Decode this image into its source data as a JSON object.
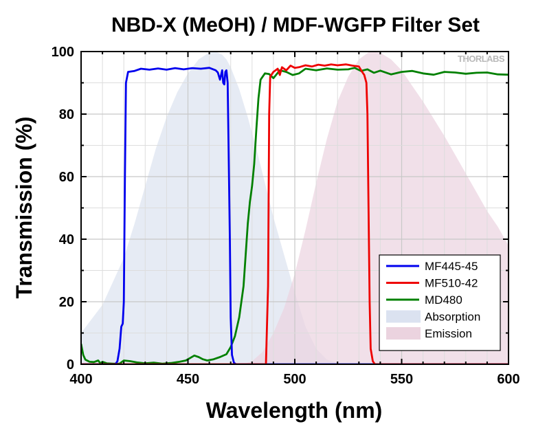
{
  "chart_data": {
    "type": "line",
    "title": "NBD-X (MeOH) / MDF-WGFP Filter Set",
    "xlabel": "Wavelength (nm)",
    "ylabel": "Transmission (%)",
    "xlim": [
      400,
      600
    ],
    "ylim": [
      0,
      100
    ],
    "x_ticks": [
      400,
      450,
      500,
      550,
      600
    ],
    "y_ticks": [
      0,
      20,
      40,
      60,
      80,
      100
    ],
    "grid": true,
    "legend_position": "bottom-right",
    "watermark": "THORLABS",
    "series": [
      {
        "name": "MF445-45",
        "kind": "line",
        "color": "#0000ee",
        "points": [
          [
            400,
            0
          ],
          [
            416,
            0
          ],
          [
            417,
            1
          ],
          [
            418,
            5
          ],
          [
            418.8,
            12
          ],
          [
            419.5,
            13
          ],
          [
            420,
            20
          ],
          [
            420.5,
            60
          ],
          [
            421,
            90
          ],
          [
            422,
            93.5
          ],
          [
            425,
            93.8
          ],
          [
            428,
            94.5
          ],
          [
            432,
            94.2
          ],
          [
            436,
            94.6
          ],
          [
            440,
            94.2
          ],
          [
            444,
            94.7
          ],
          [
            448,
            94.3
          ],
          [
            452,
            94.7
          ],
          [
            456,
            94.5
          ],
          [
            460,
            94.8
          ],
          [
            463,
            94.0
          ],
          [
            464,
            93.3
          ],
          [
            465,
            91.0
          ],
          [
            466,
            94.0
          ],
          [
            466.5,
            90.0
          ],
          [
            467,
            89.5
          ],
          [
            467.5,
            93.5
          ],
          [
            468,
            94.0
          ],
          [
            468.6,
            90.0
          ],
          [
            469,
            70.0
          ],
          [
            469.6,
            40.0
          ],
          [
            470,
            15.0
          ],
          [
            470.6,
            3.0
          ],
          [
            471.5,
            0.5
          ],
          [
            472.5,
            0
          ],
          [
            600,
            0
          ]
        ]
      },
      {
        "name": "MF510-42",
        "kind": "line",
        "color": "#ee0000",
        "points": [
          [
            400,
            0
          ],
          [
            486.5,
            0
          ],
          [
            487.5,
            25
          ],
          [
            488,
            80
          ],
          [
            488.5,
            92
          ],
          [
            490,
            93.5
          ],
          [
            492,
            94.5
          ],
          [
            493,
            92.5
          ],
          [
            494,
            95
          ],
          [
            496,
            94.0
          ],
          [
            498,
            95.5
          ],
          [
            500,
            94.8
          ],
          [
            502,
            95.0
          ],
          [
            505,
            95.6
          ],
          [
            508,
            95.2
          ],
          [
            511,
            95.8
          ],
          [
            514,
            95.5
          ],
          [
            517,
            95.9
          ],
          [
            520,
            95.6
          ],
          [
            524,
            95.9
          ],
          [
            527,
            95.5
          ],
          [
            530,
            95.2
          ],
          [
            531.5,
            93.5
          ],
          [
            532.5,
            92.5
          ],
          [
            533.5,
            90
          ],
          [
            534,
            80
          ],
          [
            534.5,
            50
          ],
          [
            535,
            20
          ],
          [
            535.5,
            5
          ],
          [
            536.5,
            1
          ],
          [
            537.5,
            0
          ],
          [
            600,
            0
          ]
        ]
      },
      {
        "name": "MD480",
        "kind": "line",
        "color": "#008000",
        "points": [
          [
            400,
            6.5
          ],
          [
            401,
            3
          ],
          [
            402,
            1.5
          ],
          [
            404,
            0.8
          ],
          [
            406,
            0.7
          ],
          [
            408,
            1.2
          ],
          [
            409,
            0.3
          ],
          [
            410,
            0.8
          ],
          [
            412,
            0.3
          ],
          [
            415,
            0.2
          ],
          [
            418,
            0.2
          ],
          [
            420,
            1.2
          ],
          [
            423,
            1.0
          ],
          [
            426,
            0.6
          ],
          [
            430,
            0.3
          ],
          [
            434,
            0.5
          ],
          [
            438,
            0.2
          ],
          [
            442,
            0.4
          ],
          [
            446,
            0.8
          ],
          [
            449,
            1.2
          ],
          [
            451,
            2.0
          ],
          [
            453,
            2.8
          ],
          [
            455,
            2.3
          ],
          [
            457,
            1.6
          ],
          [
            459,
            1.2
          ],
          [
            462,
            1.6
          ],
          [
            465,
            2.3
          ],
          [
            468,
            3.2
          ],
          [
            470,
            5.5
          ],
          [
            472,
            9
          ],
          [
            474,
            15
          ],
          [
            476,
            25
          ],
          [
            477,
            35
          ],
          [
            478,
            45
          ],
          [
            479,
            52
          ],
          [
            480,
            57
          ],
          [
            481,
            64
          ],
          [
            482,
            75
          ],
          [
            483,
            85
          ],
          [
            484,
            91
          ],
          [
            486,
            93
          ],
          [
            488,
            92.8
          ],
          [
            490,
            91.5
          ],
          [
            493,
            94.0
          ],
          [
            496,
            93.5
          ],
          [
            499,
            92.5
          ],
          [
            502,
            93.0
          ],
          [
            505,
            94.5
          ],
          [
            510,
            94.0
          ],
          [
            515,
            94.6
          ],
          [
            520,
            94.2
          ],
          [
            525,
            94.3
          ],
          [
            528,
            94.8
          ],
          [
            531,
            93.8
          ],
          [
            534,
            94.3
          ],
          [
            537,
            93.2
          ],
          [
            540,
            93.9
          ],
          [
            545,
            92.7
          ],
          [
            550,
            93.5
          ],
          [
            555,
            93.8
          ],
          [
            560,
            93.0
          ],
          [
            565,
            92.6
          ],
          [
            570,
            93.5
          ],
          [
            575,
            93.3
          ],
          [
            580,
            92.9
          ],
          [
            585,
            93.2
          ],
          [
            590,
            93.3
          ],
          [
            595,
            92.7
          ],
          [
            600,
            92.6
          ]
        ]
      },
      {
        "name": "Absorption",
        "kind": "area",
        "color": "#dbe2f0",
        "points": [
          [
            400,
            10
          ],
          [
            410,
            19
          ],
          [
            420,
            34
          ],
          [
            425,
            45
          ],
          [
            430,
            57
          ],
          [
            435,
            69
          ],
          [
            440,
            79
          ],
          [
            445,
            87
          ],
          [
            450,
            93
          ],
          [
            455,
            97.5
          ],
          [
            460,
            99.7
          ],
          [
            463,
            100
          ],
          [
            466,
            99
          ],
          [
            468,
            97.5
          ],
          [
            470,
            95
          ],
          [
            474,
            88
          ],
          [
            478,
            79
          ],
          [
            482,
            69
          ],
          [
            486,
            58
          ],
          [
            490,
            47
          ],
          [
            495,
            35
          ],
          [
            500,
            23
          ],
          [
            505,
            12
          ],
          [
            510,
            5
          ],
          [
            515,
            1.5
          ],
          [
            520,
            0.4
          ],
          [
            528,
            0
          ]
        ]
      },
      {
        "name": "Emission",
        "kind": "area",
        "color": "#ebd3df",
        "points": [
          [
            476,
            0
          ],
          [
            480,
            1
          ],
          [
            485,
            4
          ],
          [
            490,
            10
          ],
          [
            495,
            18
          ],
          [
            500,
            29
          ],
          [
            505,
            43
          ],
          [
            510,
            58
          ],
          [
            515,
            72
          ],
          [
            520,
            84
          ],
          [
            525,
            92
          ],
          [
            530,
            97.5
          ],
          [
            535,
            100
          ],
          [
            540,
            99.6
          ],
          [
            545,
            97.5
          ],
          [
            550,
            94
          ],
          [
            555,
            89
          ],
          [
            560,
            84
          ],
          [
            565,
            78.5
          ],
          [
            570,
            73
          ],
          [
            575,
            67
          ],
          [
            580,
            61
          ],
          [
            585,
            55
          ],
          [
            590,
            49
          ],
          [
            595,
            44
          ],
          [
            600,
            38
          ]
        ]
      }
    ]
  }
}
